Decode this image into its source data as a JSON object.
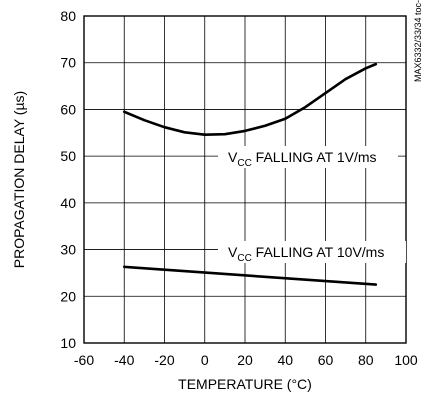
{
  "chart_data": {
    "type": "line",
    "xlabel": "TEMPERATURE (°C)",
    "ylabel": "PROPAGATION DELAY (µs)",
    "side_note": "MAX6332/33/34 toc-6",
    "xlim": [
      -60,
      100
    ],
    "ylim": [
      10,
      80
    ],
    "x_ticks": [
      "-60",
      "-40",
      "-20",
      "0",
      "20",
      "40",
      "60",
      "80",
      "100"
    ],
    "y_ticks": [
      "10",
      "20",
      "30",
      "40",
      "50",
      "60",
      "70",
      "80"
    ],
    "grid": true,
    "series": [
      {
        "label_parts": [
          "V",
          "CC",
          " FALLING AT 1V/ms"
        ],
        "x": [
          -40,
          -30,
          -20,
          -10,
          0,
          10,
          20,
          30,
          40,
          50,
          60,
          70,
          80,
          85
        ],
        "y": [
          59.5,
          57.7,
          56.2,
          55.1,
          54.6,
          54.7,
          55.4,
          56.5,
          58.0,
          60.5,
          63.5,
          66.5,
          68.8,
          69.7
        ]
      },
      {
        "label_parts": [
          "V",
          "CC",
          " FALLING AT 10V/ms"
        ],
        "x": [
          -40,
          85
        ],
        "y": [
          26.3,
          22.5
        ]
      }
    ]
  }
}
